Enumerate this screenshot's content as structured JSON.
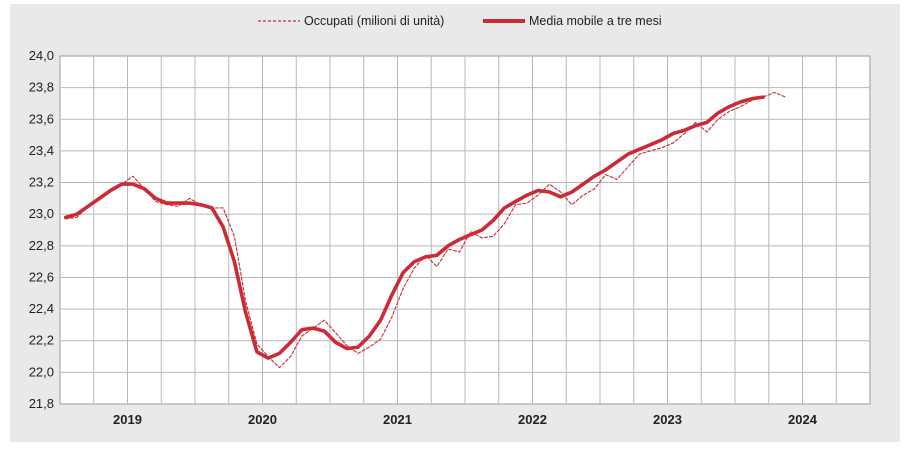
{
  "chart_data": {
    "type": "line",
    "title": "",
    "xlabel": "",
    "ylabel": "",
    "ylim": [
      21.8,
      24.0
    ],
    "yticks": [
      "21,8",
      "22,0",
      "22,2",
      "22,4",
      "22,6",
      "22,8",
      "23,0",
      "23,2",
      "23,4",
      "23,6",
      "23,8",
      "24,0"
    ],
    "years": [
      "2019",
      "2020",
      "2021",
      "2022",
      "2023",
      "2024"
    ],
    "grid": true,
    "legend_position": "top",
    "series": [
      {
        "name": "Occupati (milioni di unità)",
        "style": "dashed-thin",
        "color": "#cc2a36",
        "values": [
          22.97,
          22.98,
          23.05,
          23.1,
          23.15,
          23.19,
          23.24,
          23.16,
          23.08,
          23.06,
          23.05,
          23.1,
          23.06,
          23.04,
          23.04,
          22.86,
          22.45,
          22.18,
          22.1,
          22.03,
          22.1,
          22.23,
          22.28,
          22.33,
          22.25,
          22.17,
          22.12,
          22.16,
          22.21,
          22.35,
          22.53,
          22.66,
          22.74,
          22.67,
          22.78,
          22.76,
          22.89,
          22.85,
          22.86,
          22.94,
          23.06,
          23.07,
          23.12,
          23.19,
          23.14,
          23.06,
          23.12,
          23.16,
          23.25,
          23.22,
          23.3,
          23.38,
          23.4,
          23.42,
          23.45,
          23.51,
          23.58,
          23.52,
          23.6,
          23.65,
          23.68,
          23.72,
          23.74,
          23.77,
          23.74
        ]
      },
      {
        "name": "Media mobile a tre mesi",
        "style": "solid-thick",
        "color": "#cc2a36",
        "values": [
          22.98,
          23.0,
          23.05,
          23.1,
          23.15,
          23.19,
          23.19,
          23.16,
          23.1,
          23.07,
          23.07,
          23.07,
          23.06,
          23.04,
          22.92,
          22.7,
          22.38,
          22.13,
          22.09,
          22.12,
          22.19,
          22.27,
          22.28,
          22.26,
          22.19,
          22.15,
          22.16,
          22.23,
          22.33,
          22.49,
          22.63,
          22.7,
          22.73,
          22.74,
          22.8,
          22.84,
          22.87,
          22.9,
          22.96,
          23.04,
          23.08,
          23.12,
          23.15,
          23.14,
          23.11,
          23.14,
          23.19,
          23.24,
          23.28,
          23.33,
          23.38,
          23.41,
          23.44,
          23.47,
          23.51,
          23.53,
          23.56,
          23.58,
          23.64,
          23.68,
          23.71,
          23.73,
          23.74
        ]
      }
    ]
  },
  "legend": {
    "items": [
      {
        "label": "Occupati (milioni di unità)"
      },
      {
        "label": "Media mobile a tre mesi"
      }
    ]
  }
}
